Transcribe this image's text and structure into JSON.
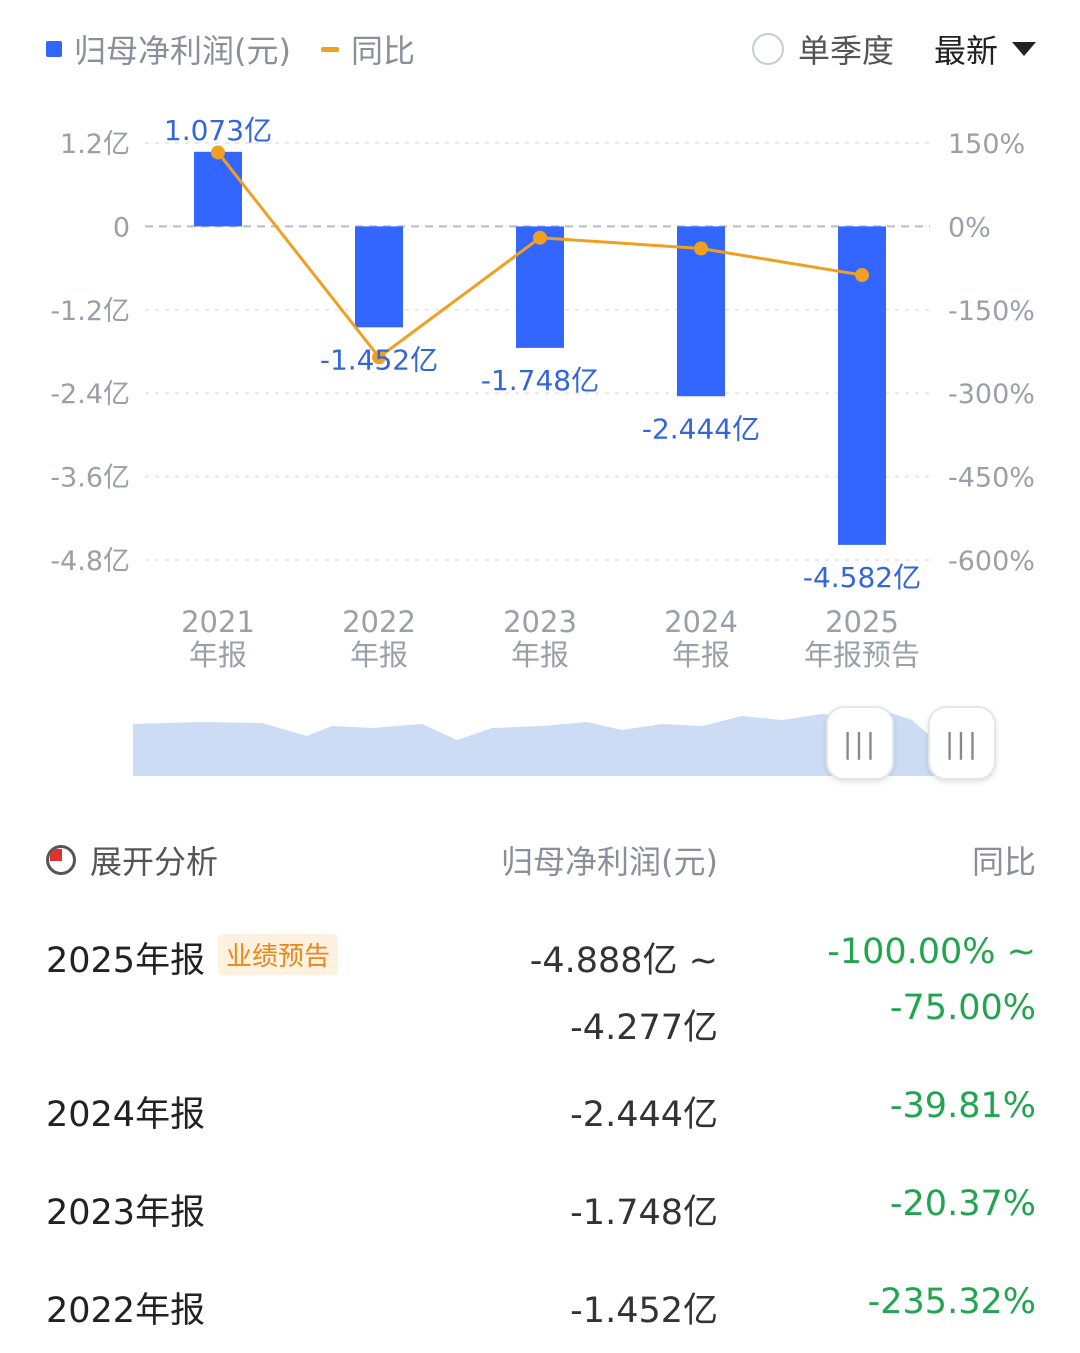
{
  "legend": {
    "bar_label": "归母净利润(元)",
    "line_label": "同比"
  },
  "controls": {
    "single_quarter_label": "单季度",
    "sort_label": "最新"
  },
  "colors": {
    "bar": "#3366ff",
    "line": "#f0a020",
    "positive": "#22a54f",
    "badge": "#e8881a"
  },
  "chart_data": {
    "type": "bar",
    "categories": [
      "2021年报",
      "2022年报",
      "2023年报",
      "2024年报",
      "2025年报预告"
    ],
    "category_lines": [
      [
        "2021",
        "年报"
      ],
      [
        "2022",
        "年报"
      ],
      [
        "2023",
        "年报"
      ],
      [
        "2024",
        "年报"
      ],
      [
        "2025",
        "年报预告"
      ]
    ],
    "series": [
      {
        "name": "归母净利润(元)",
        "type": "bar",
        "values": [
          1.073,
          -1.452,
          -1.748,
          -2.444,
          -4.582
        ],
        "value_labels": [
          "1.073亿",
          "-1.452亿",
          "-1.748亿",
          "-2.444亿",
          "-4.582亿"
        ]
      },
      {
        "name": "同比",
        "type": "line",
        "axis": "right",
        "values": [
          133,
          -235.32,
          -20.37,
          -39.81,
          -87.5
        ]
      }
    ],
    "left_axis": {
      "ticks": [
        1.2,
        0,
        -1.2,
        -2.4,
        -3.6,
        -4.8
      ],
      "tick_labels": [
        "1.2亿",
        "0",
        "-1.2亿",
        "-2.4亿",
        "-3.6亿",
        "-4.8亿"
      ],
      "ylim": [
        -4.8,
        1.2
      ]
    },
    "right_axis": {
      "ticks": [
        150,
        0,
        -150,
        -300,
        -450,
        -600
      ],
      "tick_labels": [
        "150%",
        "0%",
        "-150%",
        "-300%",
        "-450%",
        "-600%"
      ],
      "ylim": [
        -600,
        150
      ]
    },
    "grid": true
  },
  "table": {
    "header": {
      "expand_label": "展开分析",
      "value_col": "归母净利润(元)",
      "yoy_col": "同比"
    },
    "rows": [
      {
        "label": "2025年报",
        "badge": "业绩预告",
        "value_line1": "-4.888亿 ~",
        "value_line2": "-4.277亿",
        "yoy_line1": "-100.00% ~",
        "yoy_line2": "-75.00%"
      },
      {
        "label": "2024年报",
        "value": "-2.444亿",
        "yoy": "-39.81%"
      },
      {
        "label": "2023年报",
        "value": "-1.748亿",
        "yoy": "-20.37%"
      },
      {
        "label": "2022年报",
        "value": "-1.452亿",
        "yoy": "-235.32%"
      }
    ]
  }
}
